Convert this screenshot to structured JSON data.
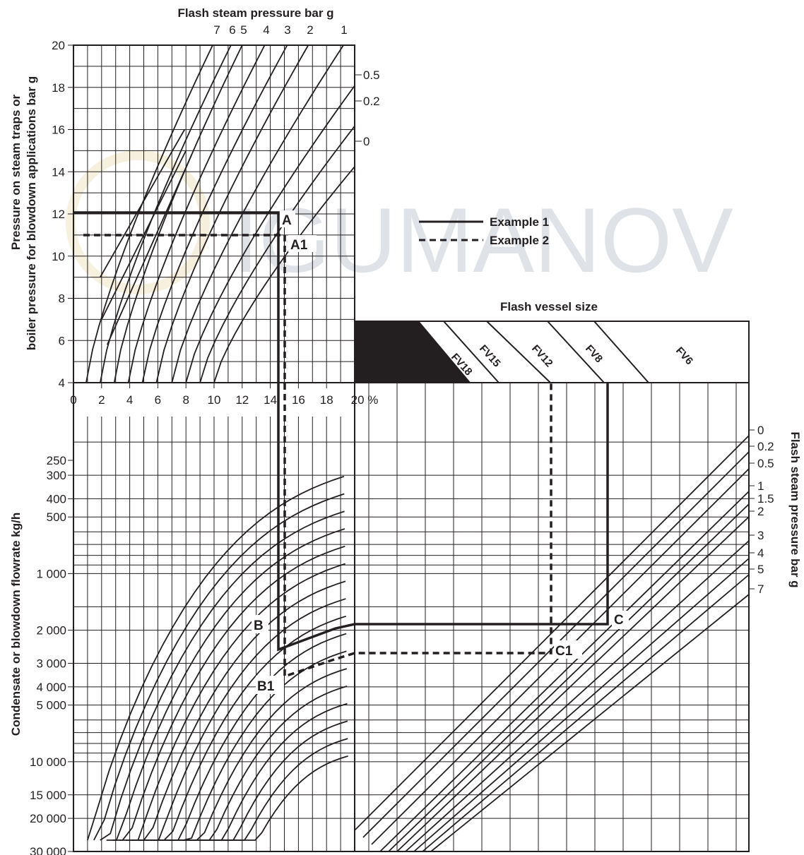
{
  "chart_data": {
    "type": "nomogram",
    "watermark": "IGUMANOV",
    "panels": {
      "top_left": {
        "title": "Flash steam pressure bar g",
        "ylabel": [
          "Pressure on steam traps or",
          "boiler pressure for blowdown applications bar g"
        ],
        "y_ticks": [
          "4",
          "6",
          "8",
          "10",
          "12",
          "14",
          "16",
          "18",
          "20"
        ],
        "ylim": [
          4,
          20
        ],
        "x_ticks": [
          "0",
          "2",
          "4",
          "6",
          "8",
          "10",
          "12",
          "14",
          "16",
          "18",
          "20 %"
        ],
        "xlim": [
          0,
          20
        ],
        "top_curve_labels": [
          "7",
          "6",
          "5",
          "4",
          "3",
          "2",
          "1"
        ],
        "right_curve_labels": [
          "0.5",
          "0.2",
          "0"
        ]
      },
      "bottom_left": {
        "ylabel": "Condensate or blowdown flowrate kg/h",
        "y_ticks": [
          "250",
          "300",
          "400",
          "500",
          "1 000",
          "2 000",
          "3 000",
          "4 000",
          "5 000",
          "10 000",
          "15 000",
          "20 000",
          "30 000"
        ]
      },
      "vessel": {
        "title": "Flash vessel size",
        "sizes": [
          "FV18",
          "FV15",
          "FV12",
          "FV8",
          "FV6"
        ]
      },
      "bottom_right": {
        "ylabel": "Flash steam pressure bar g",
        "pressure_labels": [
          "0",
          "0.2",
          "0.5",
          "1",
          "1.5",
          "2",
          "3",
          "4",
          "5",
          "7"
        ]
      }
    },
    "legend": {
      "example1": "Example 1",
      "example2": "Example 2",
      "placement": "top-right"
    },
    "points": [
      "A",
      "A1",
      "B",
      "B1",
      "C",
      "C1"
    ],
    "example1": {
      "pressure_bar_g": 12,
      "flash_percent": 14.5
    },
    "example2": {
      "pressure_bar_g": 11,
      "flash_percent": 15
    }
  }
}
